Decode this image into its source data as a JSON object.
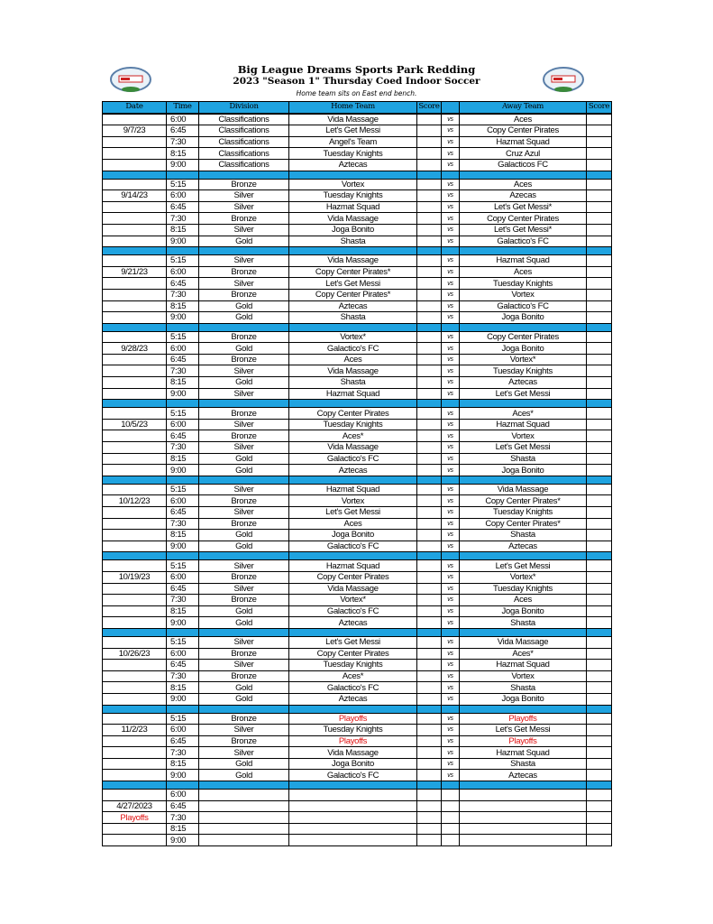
{
  "header": {
    "title": "Big League Dreams Sports Park Redding",
    "subtitle": "2023 \"Season 1\" Thursday Coed Indoor Soccer",
    "note": "Home team sits on East end bench."
  },
  "columns": [
    "Date",
    "Time",
    "Division",
    "Home Team",
    "Score",
    "",
    "Away Team",
    "Score"
  ],
  "vs_label": "vs",
  "colors": {
    "header_blue": "#1fa3e0",
    "playoffs_red": "#e01010"
  },
  "weeks": [
    {
      "date": "9/7/23",
      "rows": [
        {
          "time": "6:00",
          "division": "Classifications",
          "home": "Vida Massage",
          "away": "Aces"
        },
        {
          "time": "6:45",
          "division": "Classifications",
          "home": "Let's Get Messi",
          "away": "Copy Center Pirates"
        },
        {
          "time": "7:30",
          "division": "Classifications",
          "home": "Angel's Team",
          "away": "Hazmat Squad"
        },
        {
          "time": "8:15",
          "division": "Classifications",
          "home": "Tuesday Knights",
          "away": "Cruz Azul"
        },
        {
          "time": "9:00",
          "division": "Classifications",
          "home": "Aztecas",
          "away": "Galacticos FC"
        }
      ]
    },
    {
      "date": "9/14/23",
      "rows": [
        {
          "time": "5:15",
          "division": "Bronze",
          "home": "Vortex",
          "away": "Aces"
        },
        {
          "time": "6:00",
          "division": "Silver",
          "home": "Tuesday Knights",
          "away": "Azecas"
        },
        {
          "time": "6:45",
          "division": "Silver",
          "home": "Hazmat Squad",
          "away": "Let's Get Messi*"
        },
        {
          "time": "7:30",
          "division": "Bronze",
          "home": "Vida Massage",
          "away": "Copy Center Pirates"
        },
        {
          "time": "8:15",
          "division": "Silver",
          "home": "Joga Bonito",
          "away": "Let's Get Messi*"
        },
        {
          "time": "9:00",
          "division": "Gold",
          "home": "Shasta",
          "away": "Galactico's FC"
        }
      ]
    },
    {
      "date": "9/21/23",
      "rows": [
        {
          "time": "5:15",
          "division": "Silver",
          "home": "Vida Massage",
          "away": "Hazmat Squad"
        },
        {
          "time": "6:00",
          "division": "Bronze",
          "home": "Copy Center Pirates*",
          "away": "Aces"
        },
        {
          "time": "6:45",
          "division": "Silver",
          "home": "Let's Get Messi",
          "away": "Tuesday Knights"
        },
        {
          "time": "7:30",
          "division": "Bronze",
          "home": "Copy Center Pirates*",
          "away": "Vortex"
        },
        {
          "time": "8:15",
          "division": "Gold",
          "home": "Aztecas",
          "away": "Galactico's FC"
        },
        {
          "time": "9:00",
          "division": "Gold",
          "home": "Shasta",
          "away": "Joga Bonito"
        }
      ]
    },
    {
      "date": "9/28/23",
      "rows": [
        {
          "time": "5:15",
          "division": "Bronze",
          "home": "Vortex*",
          "away": "Copy Center Pirates"
        },
        {
          "time": "6:00",
          "division": "Gold",
          "home": "Galactico's FC",
          "away": "Joga Bonito"
        },
        {
          "time": "6:45",
          "division": "Bronze",
          "home": "Aces",
          "away": "Vortex*"
        },
        {
          "time": "7:30",
          "division": "Silver",
          "home": "Vida Massage",
          "away": "Tuesday Knights"
        },
        {
          "time": "8:15",
          "division": "Gold",
          "home": "Shasta",
          "away": "Aztecas"
        },
        {
          "time": "9:00",
          "division": "Silver",
          "home": "Hazmat Squad",
          "away": "Let's Get Messi"
        }
      ]
    },
    {
      "date": "10/5/23",
      "rows": [
        {
          "time": "5:15",
          "division": "Bronze",
          "home": "Copy Center Pirates",
          "away": "Aces*"
        },
        {
          "time": "6:00",
          "division": "Silver",
          "home": "Tuesday Knights",
          "away": "Hazmat Squad"
        },
        {
          "time": "6:45",
          "division": "Bronze",
          "home": "Aces*",
          "away": "Vortex"
        },
        {
          "time": "7:30",
          "division": "Silver",
          "home": "Vida Massage",
          "away": "Let's Get Messi"
        },
        {
          "time": "8:15",
          "division": "Gold",
          "home": "Galactico's FC",
          "away": "Shasta"
        },
        {
          "time": "9:00",
          "division": "Gold",
          "home": "Aztecas",
          "away": "Joga Bonito"
        }
      ]
    },
    {
      "date": "10/12/23",
      "rows": [
        {
          "time": "5:15",
          "division": "Silver",
          "home": "Hazmat Squad",
          "away": "Vida Massage"
        },
        {
          "time": "6:00",
          "division": "Bronze",
          "home": "Vortex",
          "away": "Copy Center Pirates*"
        },
        {
          "time": "6:45",
          "division": "Silver",
          "home": "Let's Get Messi",
          "away": "Tuesday Knights"
        },
        {
          "time": "7:30",
          "division": "Bronze",
          "home": "Aces",
          "away": "Copy Center Pirates*"
        },
        {
          "time": "8:15",
          "division": "Gold",
          "home": "Joga Bonito",
          "away": "Shasta"
        },
        {
          "time": "9:00",
          "division": "Gold",
          "home": "Galactico's FC",
          "away": "Aztecas"
        }
      ]
    },
    {
      "date": "10/19/23",
      "rows": [
        {
          "time": "5:15",
          "division": "Silver",
          "home": "Hazmat Squad",
          "away": "Let's Get Messi"
        },
        {
          "time": "6:00",
          "division": "Bronze",
          "home": "Copy Center Pirates",
          "away": "Vortex*"
        },
        {
          "time": "6:45",
          "division": "Silver",
          "home": "Vida Massage",
          "away": "Tuesday Knights"
        },
        {
          "time": "7:30",
          "division": "Bronze",
          "home": "Vortex*",
          "away": "Aces"
        },
        {
          "time": "8:15",
          "division": "Gold",
          "home": "Galactico's FC",
          "away": "Joga Bonito"
        },
        {
          "time": "9:00",
          "division": "Gold",
          "home": "Aztecas",
          "away": "Shasta"
        }
      ]
    },
    {
      "date": "10/26/23",
      "rows": [
        {
          "time": "5:15",
          "division": "Silver",
          "home": "Let's Get Messi",
          "away": "Vida Massage"
        },
        {
          "time": "6:00",
          "division": "Bronze",
          "home": "Copy Center Pirates",
          "away": "Aces*"
        },
        {
          "time": "6:45",
          "division": "Silver",
          "home": "Tuesday Knights",
          "away": "Hazmat Squad"
        },
        {
          "time": "7:30",
          "division": "Bronze",
          "home": "Aces*",
          "away": "Vortex"
        },
        {
          "time": "8:15",
          "division": "Gold",
          "home": "Galactico's FC",
          "away": "Shasta"
        },
        {
          "time": "9:00",
          "division": "Gold",
          "home": "Aztecas",
          "away": "Joga Bonito"
        }
      ]
    },
    {
      "date": "11/2/23",
      "rows": [
        {
          "time": "5:15",
          "division": "Bronze",
          "home": "Playoffs",
          "away": "Playoffs",
          "home_red": true,
          "away_red": true
        },
        {
          "time": "6:00",
          "division": "Silver",
          "home": "Tuesday Knights",
          "away": "Let's Get Messi"
        },
        {
          "time": "6:45",
          "division": "Bronze",
          "home": "Playoffs",
          "away": "Playoffs",
          "home_red": true,
          "away_red": true
        },
        {
          "time": "7:30",
          "division": "Silver",
          "home": "Vida Massage",
          "away": "Hazmat Squad"
        },
        {
          "time": "8:15",
          "division": "Gold",
          "home": "Joga Bonito",
          "away": "Shasta"
        },
        {
          "time": "9:00",
          "division": "Gold",
          "home": "Galactico's FC",
          "away": "Aztecas"
        }
      ]
    },
    {
      "date": "4/27/2023",
      "label": "Playoffs",
      "empty": true,
      "rows": [
        {
          "time": "6:00"
        },
        {
          "time": "6:45"
        },
        {
          "time": "7:30"
        },
        {
          "time": "8:15"
        },
        {
          "time": "9:00"
        }
      ]
    }
  ]
}
